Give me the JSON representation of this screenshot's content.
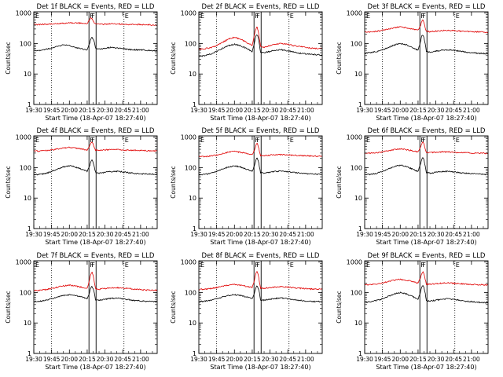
{
  "chart_data": {
    "type": "line",
    "title_suffix": "BLACK = Events, RED = LLD",
    "xlabel": "Start Time (18-Apr-07 18:27:40)",
    "ylabel": "Counts/sec",
    "x_ticks": [
      "19:30",
      "19:45",
      "20:00",
      "20:15",
      "20:30",
      "20:45",
      "21:00"
    ],
    "x_tick_minutes": [
      0,
      15,
      30,
      45,
      60,
      75,
      90
    ],
    "xlim_minutes": [
      0,
      104
    ],
    "y_ticks": [
      "1",
      "10",
      "100",
      "1000"
    ],
    "y_tick_values": [
      1,
      10,
      100,
      1000
    ],
    "ylim": [
      1,
      1100
    ],
    "y_scale": "log",
    "dotted_lines_minutes": [
      15,
      76
    ],
    "attenuator_box_minutes": [
      46.5,
      52.5
    ],
    "box_labels": [
      "F",
      "F"
    ],
    "e_label": "E",
    "series_names": [
      "Events",
      "LLD"
    ],
    "series_colors": {
      "Events": "#000000",
      "LLD": "#e00000"
    },
    "time_axis_minutes": [
      0,
      5,
      10,
      15,
      20,
      25,
      30,
      35,
      40,
      45,
      47,
      48,
      49,
      50,
      51,
      52,
      55,
      60,
      65,
      70,
      75,
      80,
      85,
      90,
      95,
      104
    ],
    "panels": [
      {
        "label": "Det 1f",
        "events": [
          58,
          60,
          65,
          70,
          80,
          90,
          85,
          75,
          68,
          62,
          100,
          140,
          160,
          140,
          110,
          70,
          65,
          70,
          75,
          72,
          68,
          64,
          62,
          62,
          60,
          58
        ],
        "lld": [
          420,
          420,
          430,
          440,
          450,
          460,
          470,
          470,
          460,
          450,
          600,
          700,
          650,
          560,
          480,
          440,
          430,
          430,
          440,
          440,
          430,
          420,
          420,
          420,
          410,
          400
        ]
      },
      {
        "label": "Det 2f",
        "events": [
          38,
          40,
          45,
          55,
          70,
          85,
          95,
          85,
          70,
          55,
          110,
          170,
          200,
          160,
          100,
          50,
          50,
          55,
          60,
          62,
          58,
          52,
          48,
          46,
          44,
          42
        ],
        "lld": [
          65,
          68,
          72,
          85,
          110,
          140,
          160,
          140,
          110,
          85,
          200,
          300,
          360,
          260,
          150,
          80,
          75,
          85,
          95,
          100,
          95,
          85,
          80,
          75,
          70,
          68
        ]
      },
      {
        "label": "Det 3f",
        "events": [
          48,
          50,
          55,
          62,
          75,
          90,
          100,
          90,
          75,
          60,
          110,
          170,
          200,
          150,
          100,
          55,
          52,
          56,
          60,
          62,
          60,
          56,
          52,
          50,
          48,
          46
        ],
        "lld": [
          240,
          240,
          250,
          270,
          300,
          330,
          350,
          330,
          300,
          270,
          380,
          520,
          600,
          480,
          340,
          250,
          245,
          255,
          265,
          270,
          265,
          255,
          250,
          245,
          240,
          235
        ]
      },
      {
        "label": "Det 4f",
        "events": [
          58,
          60,
          65,
          75,
          90,
          105,
          115,
          105,
          90,
          75,
          110,
          150,
          180,
          150,
          110,
          70,
          66,
          70,
          74,
          76,
          72,
          68,
          65,
          63,
          62,
          60
        ],
        "lld": [
          350,
          350,
          360,
          380,
          410,
          440,
          460,
          440,
          410,
          380,
          520,
          640,
          700,
          620,
          460,
          380,
          370,
          380,
          390,
          390,
          380,
          375,
          370,
          365,
          360,
          355
        ]
      },
      {
        "label": "Det 5f",
        "events": [
          58,
          60,
          65,
          75,
          90,
          105,
          115,
          105,
          90,
          75,
          120,
          170,
          210,
          170,
          110,
          70,
          66,
          70,
          75,
          78,
          74,
          70,
          66,
          64,
          62,
          60
        ],
        "lld": [
          230,
          230,
          240,
          260,
          290,
          320,
          340,
          320,
          290,
          260,
          380,
          520,
          620,
          520,
          360,
          250,
          245,
          255,
          265,
          270,
          260,
          255,
          250,
          245,
          240,
          235
        ]
      },
      {
        "label": "Det 6f",
        "events": [
          58,
          60,
          65,
          75,
          90,
          110,
          120,
          110,
          90,
          75,
          130,
          180,
          220,
          180,
          110,
          70,
          66,
          70,
          74,
          76,
          72,
          68,
          66,
          64,
          62,
          60
        ],
        "lld": [
          300,
          300,
          310,
          330,
          360,
          390,
          410,
          390,
          360,
          330,
          460,
          600,
          700,
          600,
          420,
          320,
          310,
          320,
          330,
          330,
          320,
          315,
          310,
          305,
          300,
          295
        ]
      },
      {
        "label": "Det 7f",
        "events": [
          50,
          52,
          56,
          62,
          72,
          80,
          84,
          80,
          72,
          62,
          100,
          140,
          160,
          140,
          100,
          58,
          56,
          60,
          64,
          66,
          62,
          58,
          55,
          53,
          51,
          50
        ],
        "lld": [
          115,
          118,
          125,
          135,
          150,
          165,
          175,
          165,
          150,
          135,
          260,
          400,
          480,
          380,
          220,
          130,
          128,
          135,
          142,
          145,
          140,
          134,
          128,
          124,
          120,
          118
        ]
      },
      {
        "label": "Det 8f",
        "events": [
          50,
          52,
          56,
          62,
          72,
          80,
          84,
          80,
          72,
          62,
          100,
          140,
          165,
          140,
          100,
          58,
          56,
          60,
          64,
          66,
          62,
          58,
          55,
          53,
          51,
          50
        ],
        "lld": [
          125,
          128,
          135,
          145,
          160,
          175,
          185,
          175,
          160,
          145,
          270,
          420,
          500,
          400,
          230,
          140,
          138,
          145,
          150,
          155,
          150,
          144,
          138,
          134,
          130,
          128
        ]
      },
      {
        "label": "Det 9f",
        "events": [
          48,
          50,
          55,
          62,
          75,
          90,
          100,
          90,
          75,
          60,
          100,
          150,
          175,
          140,
          95,
          55,
          52,
          56,
          60,
          62,
          60,
          56,
          52,
          50,
          48,
          46
        ],
        "lld": [
          180,
          182,
          190,
          205,
          230,
          255,
          270,
          255,
          230,
          205,
          300,
          420,
          480,
          400,
          270,
          190,
          186,
          194,
          202,
          206,
          200,
          194,
          188,
          184,
          180,
          176
        ]
      }
    ]
  }
}
